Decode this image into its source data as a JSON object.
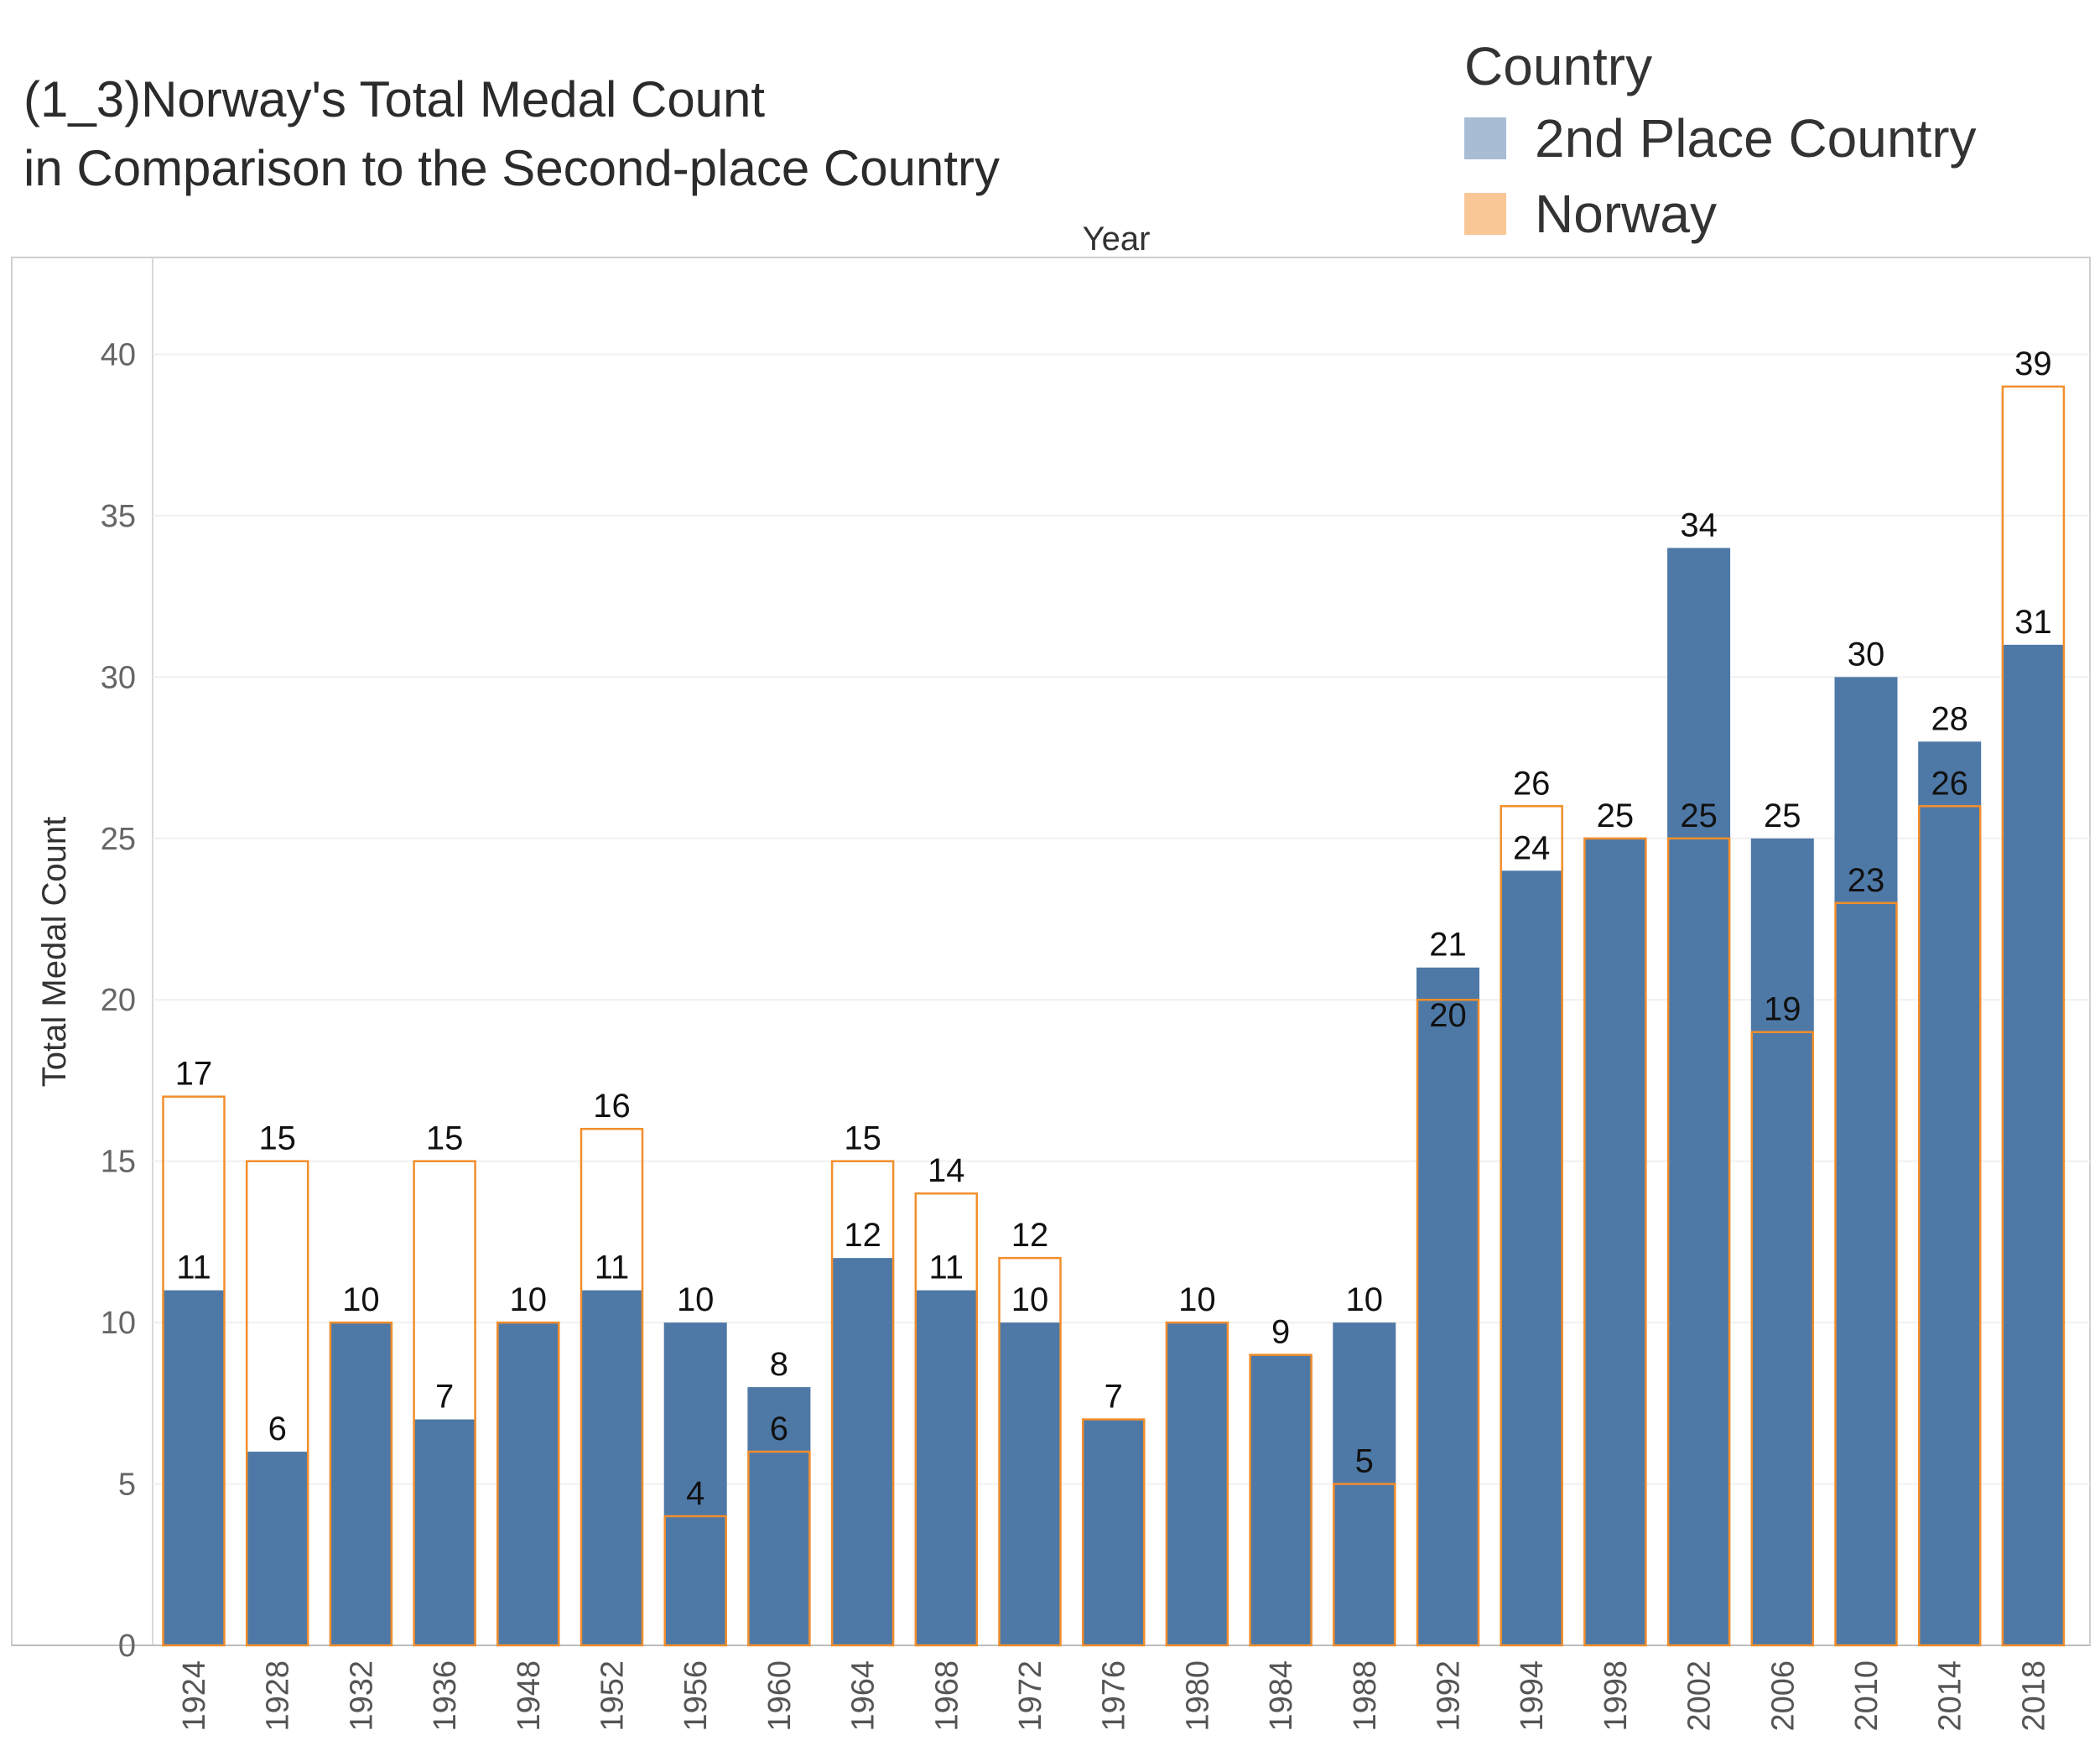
{
  "chart_data": {
    "type": "bar",
    "title_lines": [
      "(1_3)Norway's Total Medal Count",
      "in Comparison to the Second-place Country"
    ],
    "xlabel": "Year",
    "ylabel": "Total Medal Count",
    "ylim": [
      0,
      43
    ],
    "yticks": [
      0,
      5,
      10,
      15,
      20,
      25,
      30,
      35,
      40
    ],
    "grid": true,
    "legend": {
      "title": "Country",
      "placement": "top-right",
      "entries": [
        {
          "name": "2nd Place Country",
          "color": "#a8bcd4"
        },
        {
          "name": "Norway",
          "color": "#f9c796"
        }
      ]
    },
    "categories": [
      "1924",
      "1928",
      "1932",
      "1936",
      "1948",
      "1952",
      "1956",
      "1960",
      "1964",
      "1968",
      "1972",
      "1976",
      "1980",
      "1984",
      "1988",
      "1992",
      "1994",
      "1998",
      "2002",
      "2006",
      "2010",
      "2014",
      "2018"
    ],
    "series": [
      {
        "name": "2nd Place Country",
        "color": "#4e79a7",
        "values": [
          11,
          6,
          10,
          7,
          10,
          11,
          10,
          8,
          12,
          11,
          10,
          7,
          10,
          9,
          10,
          21,
          24,
          25,
          34,
          25,
          30,
          28,
          31
        ]
      },
      {
        "name": "Norway",
        "color": "#f28e2b",
        "values": [
          17,
          15,
          10,
          15,
          10,
          16,
          4,
          6,
          15,
          14,
          12,
          7,
          10,
          9,
          5,
          20,
          26,
          25,
          25,
          19,
          23,
          26,
          39
        ]
      }
    ]
  }
}
